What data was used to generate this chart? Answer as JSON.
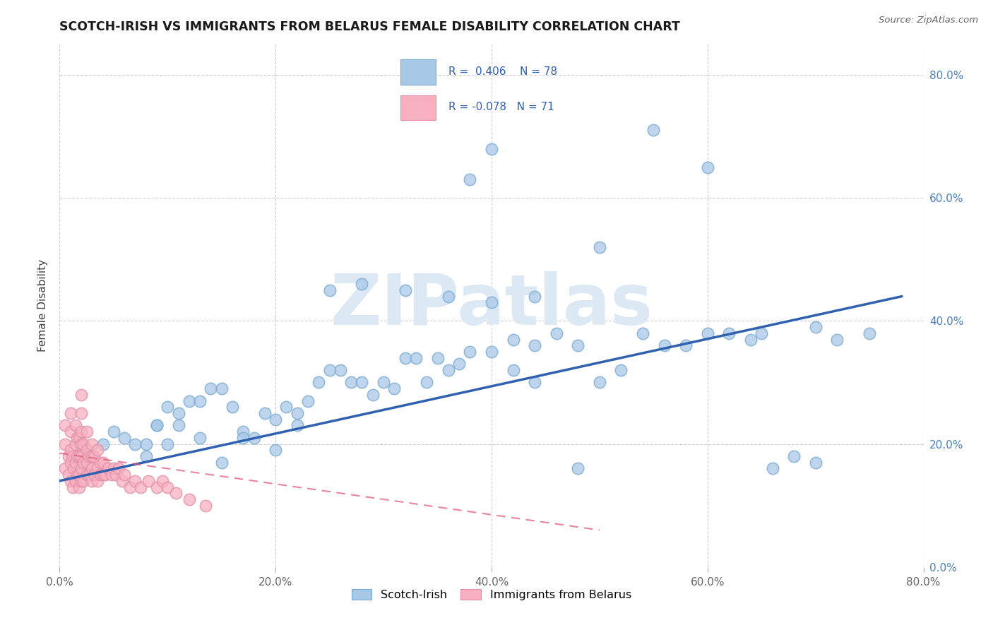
{
  "title": "SCOTCH-IRISH VS IMMIGRANTS FROM BELARUS FEMALE DISABILITY CORRELATION CHART",
  "source": "Source: ZipAtlas.com",
  "ylabel": "Female Disability",
  "xlim": [
    0.0,
    0.8
  ],
  "ylim": [
    0.0,
    0.85
  ],
  "x_ticks": [
    0.0,
    0.2,
    0.4,
    0.6,
    0.8
  ],
  "y_ticks": [
    0.0,
    0.2,
    0.4,
    0.6,
    0.8
  ],
  "scotch_irish_color": "#a8c8e8",
  "scotch_irish_line_color": "#3060b0",
  "scotch_irish_edge_color": "#7aaad0",
  "belarus_color": "#f8b0c0",
  "belarus_line_color": "#e05070",
  "belarus_edge_color": "#e090a8",
  "watermark": "ZIPatlas",
  "legend_label_1": "Scotch-Irish",
  "legend_label_2": "Immigrants from Belarus",
  "scotch_irish_x": [
    0.08,
    0.09,
    0.1,
    0.1,
    0.11,
    0.12,
    0.13,
    0.14,
    0.15,
    0.16,
    0.17,
    0.18,
    0.19,
    0.2,
    0.21,
    0.22,
    0.23,
    0.24,
    0.25,
    0.26,
    0.27,
    0.28,
    0.29,
    0.3,
    0.31,
    0.32,
    0.33,
    0.34,
    0.35,
    0.36,
    0.37,
    0.38,
    0.4,
    0.42,
    0.44,
    0.46,
    0.48,
    0.5,
    0.52,
    0.54,
    0.56,
    0.58,
    0.6,
    0.62,
    0.64,
    0.66,
    0.68,
    0.7,
    0.72,
    0.04,
    0.05,
    0.06,
    0.07,
    0.08,
    0.09,
    0.11,
    0.13,
    0.15,
    0.17,
    0.2,
    0.22,
    0.25,
    0.28,
    0.32,
    0.36,
    0.4,
    0.44,
    0.5,
    0.55,
    0.6,
    0.65,
    0.7,
    0.75,
    0.38,
    0.4,
    0.42,
    0.44,
    0.48
  ],
  "scotch_irish_y": [
    0.2,
    0.23,
    0.2,
    0.26,
    0.25,
    0.27,
    0.27,
    0.29,
    0.29,
    0.26,
    0.22,
    0.21,
    0.25,
    0.24,
    0.26,
    0.25,
    0.27,
    0.3,
    0.32,
    0.32,
    0.3,
    0.3,
    0.28,
    0.3,
    0.29,
    0.34,
    0.34,
    0.3,
    0.34,
    0.32,
    0.33,
    0.35,
    0.35,
    0.37,
    0.36,
    0.38,
    0.36,
    0.3,
    0.32,
    0.38,
    0.36,
    0.36,
    0.38,
    0.38,
    0.37,
    0.16,
    0.18,
    0.17,
    0.37,
    0.2,
    0.22,
    0.21,
    0.2,
    0.18,
    0.23,
    0.23,
    0.21,
    0.17,
    0.21,
    0.19,
    0.23,
    0.45,
    0.46,
    0.45,
    0.44,
    0.43,
    0.44,
    0.52,
    0.71,
    0.65,
    0.38,
    0.39,
    0.38,
    0.63,
    0.68,
    0.32,
    0.3,
    0.16
  ],
  "belarus_x": [
    0.005,
    0.005,
    0.005,
    0.008,
    0.008,
    0.01,
    0.01,
    0.01,
    0.01,
    0.01,
    0.012,
    0.012,
    0.013,
    0.015,
    0.015,
    0.015,
    0.015,
    0.016,
    0.016,
    0.016,
    0.018,
    0.018,
    0.018,
    0.018,
    0.02,
    0.02,
    0.02,
    0.02,
    0.02,
    0.02,
    0.02,
    0.022,
    0.022,
    0.022,
    0.025,
    0.025,
    0.025,
    0.025,
    0.027,
    0.027,
    0.03,
    0.03,
    0.03,
    0.03,
    0.032,
    0.032,
    0.035,
    0.035,
    0.035,
    0.038,
    0.038,
    0.04,
    0.04,
    0.042,
    0.045,
    0.048,
    0.05,
    0.052,
    0.055,
    0.058,
    0.06,
    0.065,
    0.07,
    0.075,
    0.082,
    0.09,
    0.095,
    0.1,
    0.108,
    0.12,
    0.135
  ],
  "belarus_y": [
    0.16,
    0.2,
    0.23,
    0.15,
    0.18,
    0.14,
    0.17,
    0.19,
    0.22,
    0.25,
    0.13,
    0.18,
    0.16,
    0.14,
    0.17,
    0.2,
    0.23,
    0.15,
    0.18,
    0.21,
    0.13,
    0.15,
    0.18,
    0.21,
    0.14,
    0.16,
    0.18,
    0.2,
    0.22,
    0.25,
    0.28,
    0.14,
    0.17,
    0.2,
    0.15,
    0.17,
    0.19,
    0.22,
    0.15,
    0.18,
    0.14,
    0.16,
    0.18,
    0.2,
    0.15,
    0.18,
    0.14,
    0.16,
    0.19,
    0.15,
    0.17,
    0.15,
    0.17,
    0.15,
    0.16,
    0.15,
    0.16,
    0.15,
    0.16,
    0.14,
    0.15,
    0.13,
    0.14,
    0.13,
    0.14,
    0.13,
    0.14,
    0.13,
    0.12,
    0.11,
    0.1
  ],
  "si_line_x": [
    0.0,
    0.78
  ],
  "si_line_y": [
    0.14,
    0.44
  ],
  "bl_line_x": [
    0.0,
    0.5
  ],
  "bl_line_y": [
    0.185,
    0.06
  ]
}
